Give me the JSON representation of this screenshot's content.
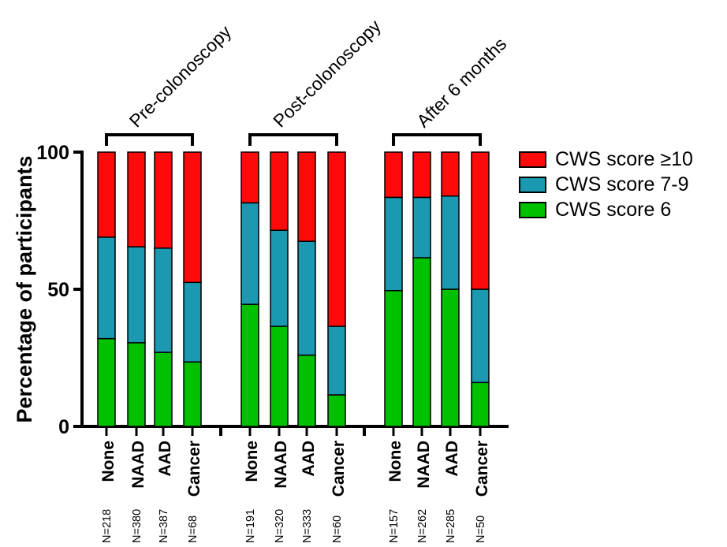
{
  "chart_data": {
    "type": "bar",
    "stacked": true,
    "ylabel": "Percentage of participants",
    "xlabel": "",
    "ylim": [
      0,
      100
    ],
    "yticks": [
      0,
      50,
      100
    ],
    "legend_position": "top-right",
    "groups": [
      {
        "label": "Pre-colonoscopy",
        "bars": [
          {
            "category": "None",
            "n_label": "N=218",
            "values": [
              32,
              37,
              31
            ]
          },
          {
            "category": "NAAD",
            "n_label": "N=380",
            "values": [
              30.5,
              35,
              34.5
            ]
          },
          {
            "category": "AAD",
            "n_label": "N=387",
            "values": [
              27,
              38,
              35
            ]
          },
          {
            "category": "Cancer",
            "n_label": "N=68",
            "values": [
              23.5,
              29,
              47.5
            ]
          }
        ]
      },
      {
        "label": "Post-colonoscopy",
        "bars": [
          {
            "category": "None",
            "n_label": "N=191",
            "values": [
              44.5,
              37,
              18.5
            ]
          },
          {
            "category": "NAAD",
            "n_label": "N=320",
            "values": [
              36.5,
              35,
              28.5
            ]
          },
          {
            "category": "AAD",
            "n_label": "N=333",
            "values": [
              26,
              41.5,
              32.5
            ]
          },
          {
            "category": "Cancer",
            "n_label": "N=60",
            "values": [
              11.5,
              25,
              63.5
            ]
          }
        ]
      },
      {
        "label": "After 6 months",
        "bars": [
          {
            "category": "None",
            "n_label": "N=157",
            "values": [
              49.5,
              34,
              16.5
            ]
          },
          {
            "category": "NAAD",
            "n_label": "N=262",
            "values": [
              61.5,
              22,
              16.5
            ]
          },
          {
            "category": "AAD",
            "n_label": "N=285",
            "values": [
              50,
              34,
              16
            ]
          },
          {
            "category": "Cancer",
            "n_label": "N=50",
            "values": [
              16,
              34,
              50
            ]
          }
        ]
      }
    ],
    "series": [
      {
        "name": "CWS score 6",
        "color": "#00c000"
      },
      {
        "name": "CWS score 7-9",
        "color": "#1a99b0"
      },
      {
        "name": "CWS score ≥10",
        "color": "#ff0a0a"
      }
    ]
  }
}
